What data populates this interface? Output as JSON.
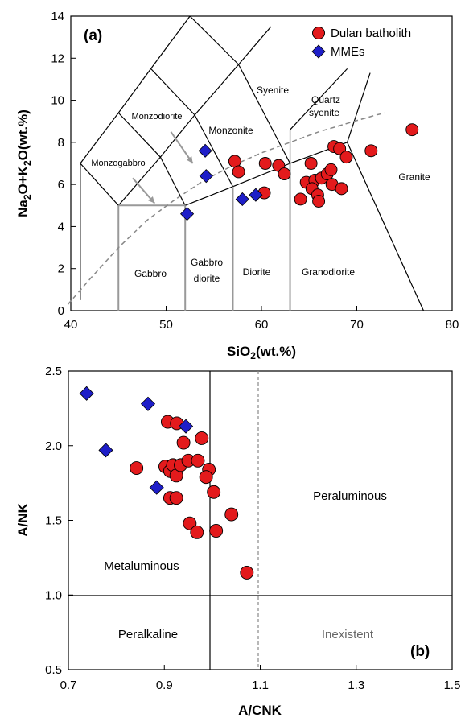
{
  "colors": {
    "batholith": "#e31a1c",
    "mme": "#1e1ec8",
    "line": "#000000",
    "guide": "#888888",
    "inexistent_text": "#666666"
  },
  "chart_data": [
    {
      "type": "scatter",
      "panel_label": "(a)",
      "xlabel_main": "SiO",
      "xlabel_sub": "2",
      "xlabel_tail": "(wt.%)",
      "ylabel_parts": [
        "Na",
        "2",
        "O+K",
        "2",
        "O(wt.%)"
      ],
      "xlim": [
        40,
        80
      ],
      "ylim": [
        0,
        14
      ],
      "x_ticks": [
        "40",
        "50",
        "60",
        "70",
        "80"
      ],
      "y_ticks": [
        "0",
        "2",
        "4",
        "6",
        "8",
        "10",
        "12",
        "14"
      ],
      "legend": [
        "Dulan batholith",
        "MMEs"
      ],
      "field_labels": {
        "monzodiorite": "Monzodiorite",
        "monzonite": "Monzonite",
        "syenite": "Syenite",
        "quartz": "Quartz",
        "syenite2": "syenite",
        "monzogabbro": "Monzogabbro",
        "granite": "Granite",
        "gabbro": "Gabbro",
        "gabbro_diorite_1": "Gabbro",
        "gabbro_diorite_2": "diorite",
        "diorite": "Diorite",
        "granodiorite": "Granodiorite"
      },
      "series": [
        {
          "name": "Dulan batholith",
          "points": [
            [
              57.2,
              7.1
            ],
            [
              57.6,
              6.6
            ],
            [
              60.3,
              5.6
            ],
            [
              60.4,
              7.0
            ],
            [
              61.8,
              6.9
            ],
            [
              62.4,
              6.5
            ],
            [
              64.1,
              5.3
            ],
            [
              64.7,
              6.1
            ],
            [
              65.2,
              7.0
            ],
            [
              65.6,
              6.2
            ],
            [
              65.3,
              5.8
            ],
            [
              65.9,
              5.5
            ],
            [
              66.3,
              6.3
            ],
            [
              66.0,
              5.2
            ],
            [
              66.9,
              6.5
            ],
            [
              67.3,
              6.7
            ],
            [
              67.6,
              7.8
            ],
            [
              67.4,
              6.0
            ],
            [
              68.2,
              7.7
            ],
            [
              68.4,
              5.8
            ],
            [
              68.9,
              7.3
            ],
            [
              71.5,
              7.6
            ],
            [
              75.8,
              8.6
            ]
          ]
        },
        {
          "name": "MMEs",
          "points": [
            [
              54.1,
              7.6
            ],
            [
              54.2,
              6.4
            ],
            [
              52.2,
              4.6
            ],
            [
              58.0,
              5.3
            ],
            [
              59.4,
              5.5
            ]
          ]
        }
      ]
    },
    {
      "type": "scatter",
      "panel_label": "(b)",
      "xlabel": "A/CNK",
      "ylabel": "A/NK",
      "xlim": [
        0.7,
        1.5
      ],
      "ylim": [
        0.5,
        2.5
      ],
      "x_ticks": [
        "0.7",
        "0.9",
        "1.1",
        "1.3",
        "1.5"
      ],
      "y_ticks": [
        "0.5",
        "1.0",
        "1.5",
        "2.0",
        "2.5"
      ],
      "region_labels": {
        "metaluminous": "Metaluminous",
        "peraluminous": "Peraluminous",
        "peralkaline": "Peralkaline",
        "inexistent": "Inexistent"
      },
      "series": [
        {
          "name": "Dulan batholith",
          "points": [
            [
              0.907,
              2.16
            ],
            [
              0.926,
              2.15
            ],
            [
              0.978,
              2.05
            ],
            [
              0.842,
              1.85
            ],
            [
              0.902,
              1.86
            ],
            [
              0.912,
              1.83
            ],
            [
              0.918,
              1.87
            ],
            [
              0.925,
              1.8
            ],
            [
              0.934,
              1.87
            ],
            [
              0.95,
              1.9
            ],
            [
              0.97,
              1.9
            ],
            [
              0.993,
              1.84
            ],
            [
              0.987,
              1.79
            ],
            [
              0.94,
              2.02
            ],
            [
              0.912,
              1.65
            ],
            [
              0.925,
              1.65
            ],
            [
              1.003,
              1.69
            ],
            [
              0.953,
              1.48
            ],
            [
              0.968,
              1.42
            ],
            [
              1.008,
              1.43
            ],
            [
              1.04,
              1.54
            ],
            [
              1.072,
              1.15
            ]
          ]
        },
        {
          "name": "MMEs",
          "points": [
            [
              0.738,
              2.35
            ],
            [
              0.866,
              2.28
            ],
            [
              0.945,
              2.13
            ],
            [
              0.778,
              1.97
            ],
            [
              0.884,
              1.72
            ]
          ]
        }
      ]
    }
  ]
}
